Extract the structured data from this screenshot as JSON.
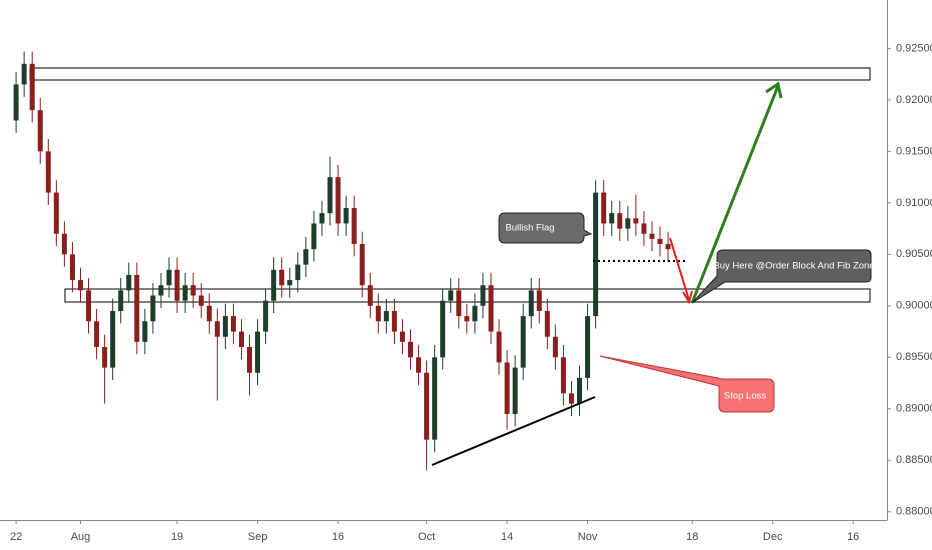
{
  "chart_data": {
    "type": "candlestick",
    "up_color": "#1f3d2b",
    "down_color": "#8b1e1e",
    "xlim": [
      -2,
      108.2
    ],
    "xticks": [
      {
        "value": 0,
        "label": "22"
      },
      {
        "value": 8,
        "label": "Aug"
      },
      {
        "value": 20,
        "label": "19"
      },
      {
        "value": 30,
        "label": "Sep"
      },
      {
        "value": 40,
        "label": "16"
      },
      {
        "value": 51,
        "label": "Oct"
      },
      {
        "value": 61,
        "label": "14"
      },
      {
        "value": 71,
        "label": "Nov"
      },
      {
        "value": 84,
        "label": "18"
      },
      {
        "value": 94,
        "label": "Dec"
      },
      {
        "value": 104,
        "label": "16"
      }
    ],
    "ylim": [
      0.8792,
      0.9297
    ],
    "yticks": [
      {
        "value": 0.88,
        "label": "0.88000"
      },
      {
        "value": 0.885,
        "label": "0.88500"
      },
      {
        "value": 0.89,
        "label": "0.89000"
      },
      {
        "value": 0.895,
        "label": "0.89500"
      },
      {
        "value": 0.9,
        "label": "0.90000"
      },
      {
        "value": 0.905,
        "label": "0.90500"
      },
      {
        "value": 0.91,
        "label": "0.91000"
      },
      {
        "value": 0.915,
        "label": "0.91500"
      },
      {
        "value": 0.92,
        "label": "0.92000"
      },
      {
        "value": 0.925,
        "label": "0.92500"
      }
    ],
    "open": [
      0.918,
      0.9215,
      0.9235,
      0.919,
      0.915,
      0.911,
      0.907,
      0.905,
      0.9025,
      0.9015,
      0.8985,
      0.896,
      0.894,
      0.8995,
      0.9015,
      0.903,
      0.8965,
      0.8985,
      0.901,
      0.902,
      0.9035,
      0.9005,
      0.902,
      0.901,
      0.9,
      0.8985,
      0.897,
      0.899,
      0.8975,
      0.896,
      0.8935,
      0.8975,
      0.9005,
      0.9035,
      0.902,
      0.9025,
      0.904,
      0.9055,
      0.908,
      0.909,
      0.9125,
      0.908,
      0.9095,
      0.906,
      0.902,
      0.9,
      0.8985,
      0.8995,
      0.8975,
      0.8965,
      0.895,
      0.8935,
      0.887,
      0.895,
      0.9005,
      0.9015,
      0.899,
      0.8985,
      0.9,
      0.902,
      0.8975,
      0.8945,
      0.8895,
      0.894,
      0.899,
      0.9015,
      0.8995,
      0.897,
      0.895,
      0.8915,
      0.8905,
      0.893,
      0.899,
      0.911,
      0.908,
      0.909,
      0.9075,
      0.9085,
      0.908,
      0.907,
      0.9065,
      0.906
    ],
    "high": [
      0.9227,
      0.9247,
      0.9247,
      0.9202,
      0.9162,
      0.9122,
      0.9082,
      0.9062,
      0.9037,
      0.9027,
      0.8997,
      0.8972,
      0.9007,
      0.9027,
      0.9042,
      0.9042,
      0.8997,
      0.9022,
      0.9032,
      0.9047,
      0.9047,
      0.9032,
      0.9032,
      0.9022,
      0.9012,
      0.8997,
      0.9002,
      0.9002,
      0.8987,
      0.8972,
      0.8987,
      0.9017,
      0.9047,
      0.9047,
      0.9037,
      0.9052,
      0.9067,
      0.9092,
      0.9102,
      0.9145,
      0.9137,
      0.9107,
      0.9107,
      0.9072,
      0.9032,
      0.9012,
      0.9007,
      0.9007,
      0.8987,
      0.8977,
      0.8962,
      0.8947,
      0.8962,
      0.9017,
      0.9027,
      0.9027,
      0.9002,
      0.9012,
      0.9032,
      0.9032,
      0.8987,
      0.8957,
      0.8952,
      0.9002,
      0.9027,
      0.9027,
      0.9007,
      0.8982,
      0.8962,
      0.8927,
      0.8942,
      0.9002,
      0.9122,
      0.9122,
      0.9102,
      0.9102,
      0.9097,
      0.9108,
      0.9092,
      0.9082,
      0.9077,
      0.9072
    ],
    "low": [
      0.9168,
      0.9203,
      0.9178,
      0.9138,
      0.9098,
      0.9058,
      0.9038,
      0.9013,
      0.9003,
      0.8973,
      0.8948,
      0.8905,
      0.8928,
      0.8983,
      0.9003,
      0.8953,
      0.8953,
      0.8973,
      0.8998,
      0.9008,
      0.8993,
      0.8993,
      0.8998,
      0.8988,
      0.8973,
      0.8908,
      0.8958,
      0.8963,
      0.8948,
      0.8913,
      0.8923,
      0.8963,
      0.8993,
      0.9008,
      0.9008,
      0.9013,
      0.9028,
      0.9043,
      0.9068,
      0.9078,
      0.9068,
      0.9068,
      0.9048,
      0.9008,
      0.8988,
      0.8973,
      0.8973,
      0.8963,
      0.8953,
      0.8938,
      0.8923,
      0.884,
      0.8858,
      0.8938,
      0.8993,
      0.8978,
      0.8973,
      0.8973,
      0.8988,
      0.8963,
      0.8933,
      0.888,
      0.8883,
      0.8928,
      0.8978,
      0.8983,
      0.8958,
      0.8938,
      0.8903,
      0.8893,
      0.8893,
      0.8918,
      0.8978,
      0.9068,
      0.9068,
      0.9063,
      0.9063,
      0.9068,
      0.9058,
      0.9053,
      0.9048,
      0.9043
    ],
    "close": [
      0.9215,
      0.9235,
      0.919,
      0.915,
      0.911,
      0.907,
      0.905,
      0.9025,
      0.9015,
      0.8985,
      0.896,
      0.894,
      0.8995,
      0.9015,
      0.903,
      0.8965,
      0.8985,
      0.901,
      0.902,
      0.9035,
      0.9005,
      0.902,
      0.901,
      0.9,
      0.8985,
      0.897,
      0.899,
      0.8975,
      0.896,
      0.8935,
      0.8975,
      0.9005,
      0.9035,
      0.902,
      0.9025,
      0.904,
      0.9055,
      0.908,
      0.909,
      0.9125,
      0.908,
      0.9095,
      0.906,
      0.902,
      0.9,
      0.8985,
      0.8995,
      0.8975,
      0.8965,
      0.895,
      0.8935,
      0.887,
      0.895,
      0.9005,
      0.9015,
      0.899,
      0.8985,
      0.9,
      0.902,
      0.8975,
      0.8945,
      0.8895,
      0.894,
      0.899,
      0.9015,
      0.8995,
      0.897,
      0.895,
      0.8915,
      0.8905,
      0.893,
      0.899,
      0.911,
      0.908,
      0.909,
      0.9075,
      0.9085,
      0.908,
      0.907,
      0.9065,
      0.906,
      0.9055
    ],
    "annotations": [
      "Bullish Flag",
      "Buy Here @Order Block And Fib Zone",
      "Stop Loss"
    ]
  }
}
